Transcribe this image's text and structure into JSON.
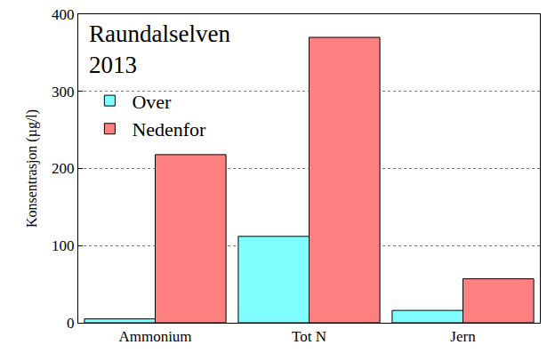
{
  "chart_data": {
    "type": "bar",
    "title": "Raundalselven\n2013",
    "y_label": "Konsentrasjon (µg/l)",
    "categories": [
      "Ammonium",
      "Tot N",
      "Jern"
    ],
    "series": [
      {
        "name": "Over",
        "color": "#80ffff",
        "values": [
          5,
          112,
          16
        ]
      },
      {
        "name": "Nedenfor",
        "color": "#ff8080",
        "values": [
          218,
          370,
          57
        ]
      }
    ],
    "ylim": [
      0,
      400
    ],
    "yticks": [
      0,
      100,
      200,
      300,
      400
    ],
    "grid": true,
    "legend": "upper left"
  }
}
